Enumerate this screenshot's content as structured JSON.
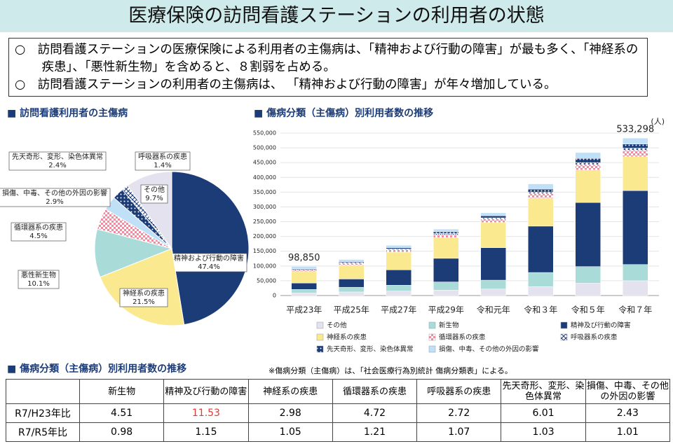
{
  "header": {
    "title": "医療保険の訪問看護ステーションの利用者の状態"
  },
  "bullets": [
    "○　訪問看護ステーションの医療保険による利用者の主傷病は、「精神および行動の障害」が最も多く、「神経系の疾患」、「悪性新生物」を含めると、８割弱を占める。",
    "○　訪問看護ステーションの利用者の主傷病は、 「精神および行動の障害」が年々増加している。"
  ],
  "chart_data": [
    {
      "type": "pie",
      "title": "■ 訪問看護利用者の主傷病",
      "categories": [
        "精神および行動の障害",
        "神経系の疾患",
        "悪性新生物",
        "循環器系の疾患",
        "損傷、中毒、その他の外因の影響",
        "先天奇形、変形、染色体異常",
        "呼吸器系の疾患",
        "その他"
      ],
      "values": [
        47.4,
        21.5,
        10.1,
        4.5,
        2.9,
        2.4,
        1.4,
        9.7
      ],
      "value_labels": [
        "47.4%",
        "21.5%",
        "10.1%",
        "4.5%",
        "2.9%",
        "2.4%",
        "1.4%",
        "9.7%"
      ],
      "colors": [
        "#1c3c78",
        "#fbe98f",
        "#a9dcd8",
        "#f4b6c2",
        "#bfe0f7",
        "#1c3c78",
        "#ffffff",
        "#e3e2ee"
      ],
      "patterns": [
        null,
        null,
        null,
        "check",
        null,
        "dots",
        "cross",
        null
      ]
    },
    {
      "type": "stacked_bar",
      "title": "■ 傷病分類（主傷病）別利用者数の推移",
      "y_unit": "(人)",
      "categories": [
        "平成23年",
        "平成25年",
        "平成27年",
        "平成29年",
        "令和元年",
        "令和３年",
        "令和５年",
        "令和７年"
      ],
      "ylim": [
        0,
        550000
      ],
      "yticks": [
        0,
        {
          "value": 50000,
          "label": "50,000"
        },
        {
          "value": 100000,
          "label": "100,000"
        },
        {
          "value": 150000,
          "label": "150,000"
        },
        {
          "value": 200000,
          "label": "200,000"
        },
        {
          "value": 250000,
          "label": "250,000"
        },
        {
          "value": 300000,
          "label": "300,000"
        },
        {
          "value": 350000,
          "label": "350,000"
        },
        {
          "value": 400000,
          "label": "400,000"
        },
        {
          "value": 450000,
          "label": "450,000"
        },
        {
          "value": 500000,
          "label": "500,000"
        },
        {
          "value": 550000,
          "label": "550,000"
        }
      ],
      "series": [
        {
          "name": "その他",
          "color": "#e3e2ee",
          "values": [
            8500,
            12000,
            15000,
            18000,
            22000,
            30000,
            42000,
            50000
          ]
        },
        {
          "name": "新生物",
          "color": "#a9dcd8",
          "values": [
            12200,
            16000,
            20000,
            28000,
            30000,
            48000,
            56000,
            55000
          ]
        },
        {
          "name": "精神及び行動の障害",
          "color": "#1c3c78",
          "values": [
            21700,
            28000,
            52000,
            80000,
            110000,
            157000,
            217000,
            250000
          ]
        },
        {
          "name": "神経系の疾患",
          "color": "#fbe98f",
          "values": [
            38600,
            47000,
            60000,
            70000,
            85000,
            95000,
            110000,
            115000
          ]
        },
        {
          "name": "循環器系の疾患",
          "color": "#f4b6c2",
          "pattern": "check",
          "values": [
            4700,
            6000,
            8000,
            10000,
            12000,
            15000,
            18000,
            22000
          ]
        },
        {
          "name": "呼吸器系の疾患",
          "color": "#ffffff",
          "pattern": "cross",
          "values": [
            2600,
            3000,
            3000,
            4000,
            4000,
            5000,
            7000,
            7000
          ]
        },
        {
          "name": "先天奇形、変形、染色体異常",
          "color": "#1c3c78",
          "pattern": "dots",
          "values": [
            2300,
            3000,
            4000,
            6000,
            7000,
            10000,
            14000,
            14000
          ]
        },
        {
          "name": "損傷、中毒、その他の外因の影響",
          "color": "#bfe0f7",
          "values": [
            8200,
            7000,
            8000,
            9000,
            10000,
            18000,
            20000,
            20000
          ]
        }
      ],
      "totals": [
        98850,
        null,
        null,
        null,
        null,
        null,
        null,
        533298
      ],
      "total_labels": [
        "98,850",
        null,
        null,
        null,
        null,
        null,
        null,
        "533,298"
      ]
    }
  ],
  "table": {
    "title": "■ 傷病分類（主傷病）別利用者数の推移",
    "note": "※傷病分類（主傷病）は、「社会医療行為別統計 傷病分類表」による。",
    "columns": [
      "新生物",
      "精神及び行動の障害",
      "神経系の疾患",
      "循環器系の疾患",
      "呼吸器系の疾患",
      "先天奇形、変形、染色体異常",
      "損傷、中毒、その他の外因の影響"
    ],
    "rows": [
      {
        "label": "R7/H23年比",
        "values": [
          4.51,
          11.53,
          2.98,
          4.72,
          2.72,
          6.01,
          2.43
        ]
      },
      {
        "label": "R7/R5年比",
        "values": [
          0.98,
          1.15,
          1.05,
          1.21,
          1.07,
          1.03,
          1.01
        ]
      }
    ],
    "highlight": {
      "row": 0,
      "column": 1,
      "color": "#e53935"
    }
  }
}
